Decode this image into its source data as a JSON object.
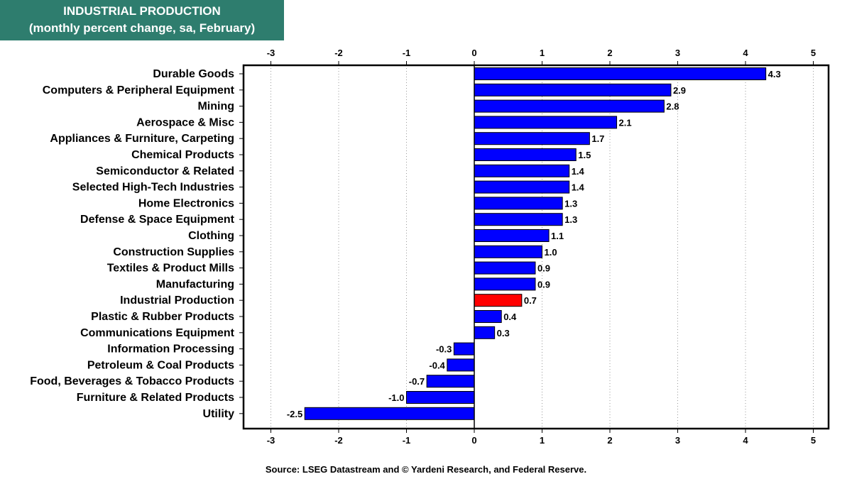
{
  "header": {
    "title": "INDUSTRIAL PRODUCTION",
    "subtitle": "(monthly percent change, sa,  February)"
  },
  "source": "Source: LSEG Datastream and © Yardeni Research, and Federal Reserve.",
  "colors": {
    "title_bg": "#2e7d6e",
    "bar": "#0000ff",
    "highlight_bar": "#ff0000",
    "frame": "#000000"
  },
  "chart_data": {
    "type": "bar",
    "orientation": "horizontal",
    "title": "INDUSTRIAL PRODUCTION",
    "subtitle": "(monthly percent change, sa,  February)",
    "xlim": [
      -3.5,
      5.3
    ],
    "xticks": [
      -3,
      -2,
      -1,
      0,
      1,
      2,
      3,
      4,
      5
    ],
    "xtick_labels": [
      "-3",
      "-2",
      "-1",
      "0",
      "1",
      "2",
      "3",
      "4",
      "5"
    ],
    "grid": "vertical dotted",
    "highlight": "Industrial Production",
    "categories": [
      "Durable Goods",
      "Computers & Peripheral Equipment",
      "Mining ",
      "Aerospace & Misc",
      "Appliances & Furniture, Carpeting",
      "Chemical Products",
      "Semiconductor & Related",
      "Selected High-Tech Industries",
      "Home Electronics",
      "Defense & Space Equipment",
      "Clothing",
      "Construction Supplies",
      "Textiles & Product Mills",
      "Manufacturing",
      "Industrial Production",
      "Plastic & Rubber Products",
      "Communications Equipment",
      "Information Processing",
      "Petroleum & Coal Products",
      "Food, Beverages & Tobacco Products",
      "Furniture & Related Products",
      "Utility"
    ],
    "values": [
      4.3,
      2.9,
      2.8,
      2.1,
      1.7,
      1.5,
      1.4,
      1.4,
      1.3,
      1.3,
      1.1,
      1.0,
      0.9,
      0.9,
      0.7,
      0.4,
      0.3,
      -0.3,
      -0.4,
      -0.7,
      -1.0,
      -2.5
    ],
    "value_labels": [
      "4.3",
      "2.9",
      "2.8",
      "2.1",
      "1.7",
      "1.5",
      "1.4",
      "1.4",
      "1.3",
      "1.3",
      "1.1",
      "1.0",
      "0.9",
      "0.9",
      "0.7",
      "0.4",
      "0.3",
      "-0.3",
      "-0.4",
      "-0.7",
      "-1.0",
      "-2.5"
    ]
  }
}
